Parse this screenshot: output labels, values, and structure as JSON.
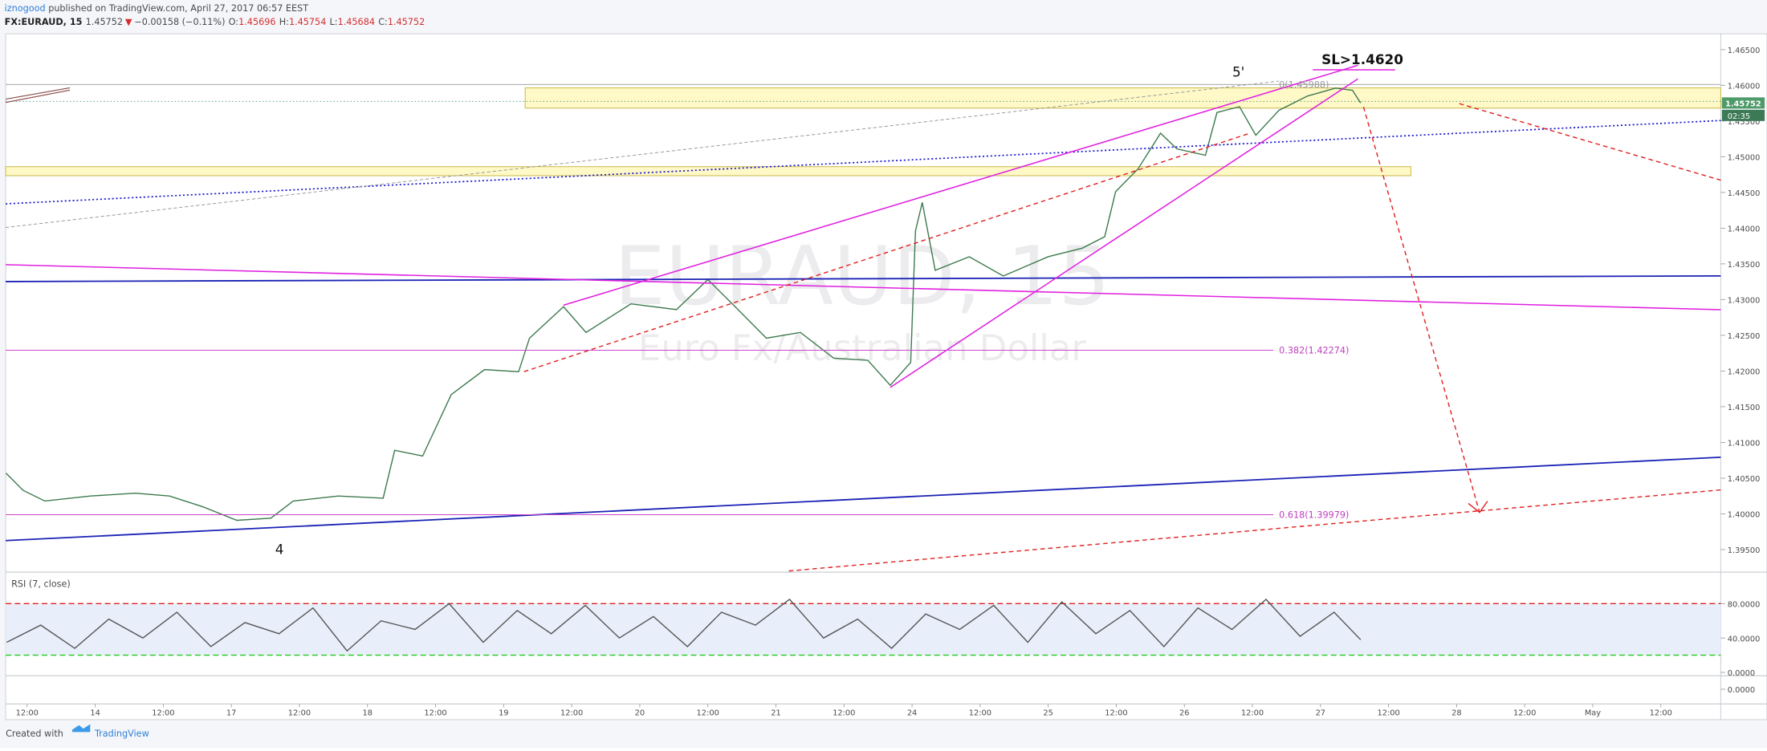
{
  "header": {
    "author": "iznogood",
    "published": " published on TradingView.com, April 27, 2017 06:57 EEST"
  },
  "quote": {
    "symbol": "FX:EURAUD, 15",
    "last": "1.45752",
    "arrow": "▼",
    "change": "−0.00158 (−0.11%)",
    "ohlc": [
      {
        "label": "O:",
        "value": "1.45696"
      },
      {
        "label": "H:",
        "value": "1.45754"
      },
      {
        "label": "L:",
        "value": "1.45684"
      },
      {
        "label": "C:",
        "value": "1.45752"
      }
    ]
  },
  "watermark": {
    "symbol": "EURAUD, 15",
    "description": "Euro Fx/Australian Dollar"
  },
  "annotations": {
    "wave5": "5'",
    "wave4": "4",
    "stop": "SL>1.4620",
    "fib0": "0(1.45988)",
    "fib382": "0.382(1.42274)",
    "fib618": "0.618(1.39979)"
  },
  "price_tag": {
    "countdown": "02:35"
  },
  "chart_data": [
    {
      "type": "line",
      "color": "#3d7a4e",
      "x": [
        -0.31,
        -0.06,
        0.26,
        0.93,
        1.59,
        2.09,
        2.58,
        3.08,
        3.58,
        3.91,
        4.57,
        5.23,
        5.4,
        5.81,
        6.23,
        6.72,
        7.22,
        7.38,
        7.88,
        8.21,
        8.87,
        9.54,
        10.0,
        10.36,
        10.86,
        11.36,
        11.85,
        12.35,
        12.68,
        12.98,
        13.05,
        13.15,
        13.34,
        13.84,
        14.34,
        15.0,
        15.5,
        15.83,
        15.99,
        16.32,
        16.65,
        16.89,
        17.31,
        17.48,
        17.81,
        18.05,
        18.39,
        18.81,
        19.22,
        19.47,
        19.59
      ],
      "values": [
        1.4057,
        1.4033,
        1.4018,
        1.4025,
        1.4029,
        1.4025,
        1.401,
        1.3991,
        1.3994,
        1.4018,
        1.4025,
        1.4022,
        1.4089,
        1.4081,
        1.4167,
        1.4202,
        1.4199,
        1.4246,
        1.429,
        1.4254,
        1.4294,
        1.4286,
        1.4328,
        1.4294,
        1.4246,
        1.4254,
        1.4218,
        1.4215,
        1.418,
        1.4212,
        1.4396,
        1.4436,
        1.4341,
        1.436,
        1.4333,
        1.436,
        1.4372,
        1.4388,
        1.4451,
        1.4483,
        1.4533,
        1.4511,
        1.4502,
        1.4562,
        1.457,
        1.453,
        1.4565,
        1.4585,
        1.4596,
        1.4593,
        1.45752
      ],
      "xlim": [
        -0.315,
        24.88
      ],
      "xticks": [
        {
          "value": 0,
          "label": "12:00"
        },
        {
          "value": 1,
          "label": "14"
        },
        {
          "value": 2,
          "label": "12:00"
        },
        {
          "value": 3,
          "label": "17"
        },
        {
          "value": 4,
          "label": "12:00"
        },
        {
          "value": 5,
          "label": "18"
        },
        {
          "value": 6,
          "label": "12:00"
        },
        {
          "value": 7,
          "label": "19"
        },
        {
          "value": 8,
          "label": "12:00"
        },
        {
          "value": 9,
          "label": "20"
        },
        {
          "value": 10,
          "label": "12:00"
        },
        {
          "value": 11,
          "label": "21"
        },
        {
          "value": 12,
          "label": "12:00"
        },
        {
          "value": 13,
          "label": "24"
        },
        {
          "value": 14,
          "label": "12:00"
        },
        {
          "value": 15,
          "label": "25"
        },
        {
          "value": 16,
          "label": "12:00"
        },
        {
          "value": 17,
          "label": "26"
        },
        {
          "value": 18,
          "label": "12:00"
        },
        {
          "value": 19,
          "label": "27"
        },
        {
          "value": 20,
          "label": "12:00"
        },
        {
          "value": 21,
          "label": "28"
        },
        {
          "value": 22,
          "label": "12:00"
        },
        {
          "value": 23,
          "label": "May"
        },
        {
          "value": 24,
          "label": "12:00"
        }
      ],
      "ylim": [
        1.39185,
        1.46721
      ],
      "yticks": [
        {
          "value": 1.395,
          "label": "1.39500"
        },
        {
          "value": 1.4,
          "label": "1.40000"
        },
        {
          "value": 1.405,
          "label": "1.40500"
        },
        {
          "value": 1.41,
          "label": "1.41000"
        },
        {
          "value": 1.415,
          "label": "1.41500"
        },
        {
          "value": 1.42,
          "label": "1.42000"
        },
        {
          "value": 1.425,
          "label": "1.42500"
        },
        {
          "value": 1.43,
          "label": "1.43000"
        },
        {
          "value": 1.435,
          "label": "1.43500"
        },
        {
          "value": 1.44,
          "label": "1.44000"
        },
        {
          "value": 1.445,
          "label": "1.44500"
        },
        {
          "value": 1.45,
          "label": "1.45000"
        },
        {
          "value": 1.455,
          "label": "1.45500"
        },
        {
          "value": 1.46,
          "label": "1.46000"
        },
        {
          "value": 1.465,
          "label": "1.46500"
        }
      ],
      "value_label": "1.45752",
      "grid": false
    },
    {
      "type": "line",
      "title": "RSI (7, close)",
      "color": "#555555",
      "x": [
        -0.3,
        0.2,
        0.7,
        1.2,
        1.7,
        2.2,
        2.7,
        3.2,
        3.7,
        4.2,
        4.7,
        5.2,
        5.7,
        6.2,
        6.7,
        7.2,
        7.7,
        8.2,
        8.7,
        9.2,
        9.7,
        10.2,
        10.7,
        11.2,
        11.7,
        12.2,
        12.7,
        13.2,
        13.7,
        14.2,
        14.7,
        15.2,
        15.7,
        16.2,
        16.7,
        17.2,
        17.7,
        18.2,
        18.7,
        19.2,
        19.59
      ],
      "values": [
        35,
        55,
        28,
        62,
        40,
        70,
        30,
        58,
        45,
        75,
        25,
        60,
        50,
        80,
        35,
        72,
        45,
        78,
        40,
        65,
        30,
        70,
        55,
        85,
        40,
        62,
        28,
        68,
        50,
        78,
        35,
        82,
        45,
        72,
        30,
        75,
        50,
        85,
        42,
        70,
        38
      ],
      "ylim": [
        -3.9,
        114.1
      ],
      "yticks": [
        {
          "value": 0,
          "label": "0.0000"
        },
        {
          "value": 40,
          "label": "40.0000"
        },
        {
          "value": 80,
          "label": "80.0000"
        }
      ],
      "upper_band": 80,
      "lower_band": 20
    },
    {
      "type": "empty",
      "yticks": [
        {
          "value": 0,
          "label": "0.0000"
        }
      ]
    }
  ],
  "footer": {
    "created": "Created with",
    "brand": "TradingView"
  }
}
